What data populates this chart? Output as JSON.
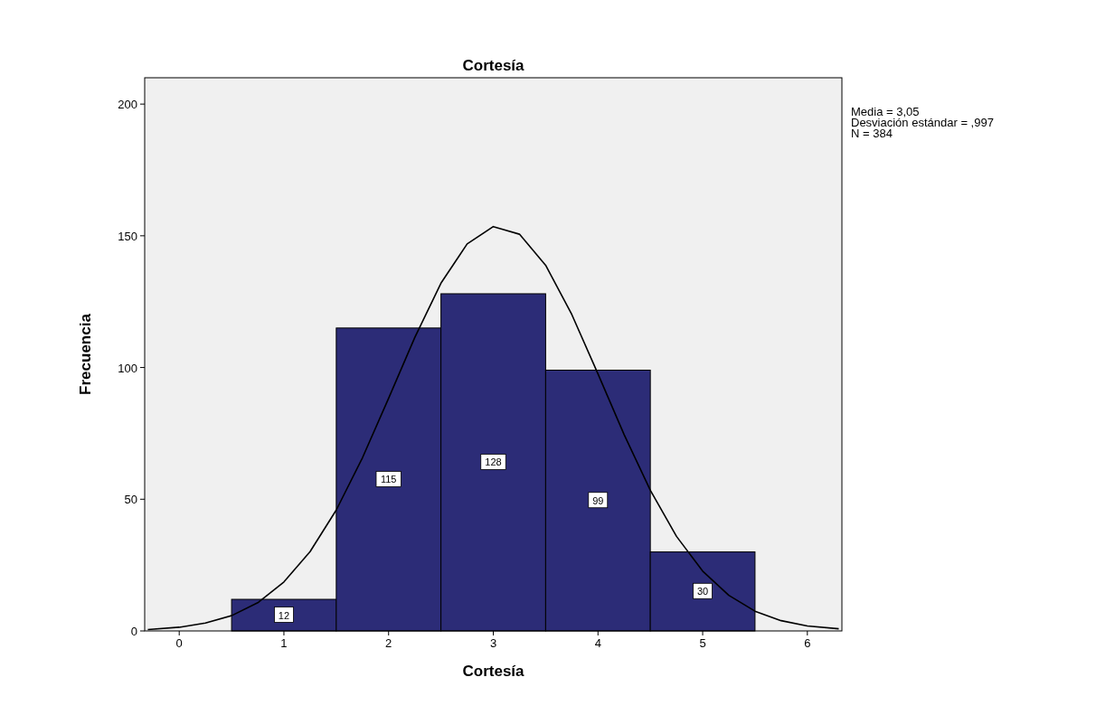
{
  "chart_data": {
    "type": "histogram",
    "title": "Cortesía",
    "xlabel": "Cortesía",
    "ylabel": "Frecuencia",
    "bins": [
      0.5,
      1.5,
      2.5,
      3.5,
      4.5,
      5.5
    ],
    "values": [
      12,
      115,
      128,
      99,
      30
    ],
    "color": "#2c2c77",
    "value_labels": [
      "12",
      "115",
      "128",
      "99",
      "30"
    ],
    "series": [
      {
        "type": "line",
        "color": "#000000",
        "x": [
          -0.3,
          0,
          0.25,
          0.5,
          0.75,
          1,
          1.25,
          1.5,
          1.75,
          2,
          2.25,
          2.5,
          2.75,
          3,
          3.25,
          3.5,
          3.75,
          4,
          4.25,
          4.5,
          4.75,
          5,
          5.25,
          5.5,
          5.75,
          6,
          6.3
        ],
        "values": [
          0.5,
          1.4,
          3,
          5.8,
          10.7,
          18.6,
          30.1,
          45.9,
          65.7,
          88.3,
          111.4,
          132,
          146.9,
          153.5,
          150.6,
          138.8,
          120.1,
          97.6,
          74.5,
          53.4,
          35.9,
          22.7,
          13.5,
          7.5,
          3.9,
          1.9,
          0.8
        ]
      }
    ],
    "xlim": [
      -0.33,
      6.33
    ],
    "xticks": [
      0,
      1,
      2,
      3,
      4,
      5,
      6
    ],
    "ylim": [
      0,
      210
    ],
    "yticks": [
      0,
      50,
      100,
      150,
      200
    ],
    "grid": false,
    "annotations": [
      "Media = 3,05",
      "Desviación estándar = ,997",
      "N = 384"
    ]
  }
}
